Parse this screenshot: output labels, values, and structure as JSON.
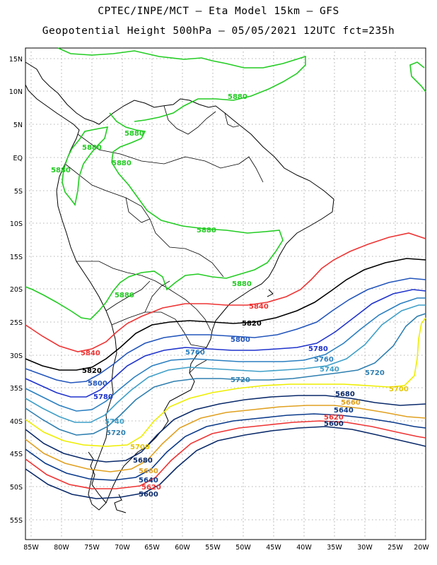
{
  "header": {
    "line1": "CPTEC/INPE/MCT –  Eta Model 15km – GFS",
    "line2": "Geopotential Height 500hPa – 05/05/2021 12UTC fct=235h"
  },
  "axes": {
    "lat_labels": [
      "15N",
      "10N",
      "5N",
      "EQ",
      "5S",
      "10S",
      "15S",
      "20S",
      "25S",
      "30S",
      "35S",
      "40S",
      "45S",
      "50S",
      "55S"
    ],
    "lon_labels": [
      "85W",
      "80W",
      "75W",
      "70W",
      "65W",
      "60W",
      "55W",
      "50W",
      "45W",
      "40W",
      "35W",
      "30W",
      "25W",
      "20W"
    ]
  },
  "contours": [
    {
      "value": "5880",
      "color": "#22cc22"
    },
    {
      "value": "5840",
      "color": "#ee3333"
    },
    {
      "value": "5820",
      "color": "#000000"
    },
    {
      "value": "5800",
      "color": "#2255bb"
    },
    {
      "value": "5780",
      "color": "#1f33cc"
    },
    {
      "value": "5760",
      "color": "#2a7fc0"
    },
    {
      "value": "5740",
      "color": "#3f9fc8"
    },
    {
      "value": "5720",
      "color": "#2f7fb0"
    },
    {
      "value": "5700",
      "color": "#eeee00"
    },
    {
      "value": "5680",
      "color": "#0a2a6a"
    },
    {
      "value": "5660",
      "color": "#e0a020"
    },
    {
      "value": "5640",
      "color": "#0a3a8a"
    },
    {
      "value": "5620",
      "color": "#ee3333"
    },
    {
      "value": "5600",
      "color": "#0a2a6a"
    }
  ]
}
